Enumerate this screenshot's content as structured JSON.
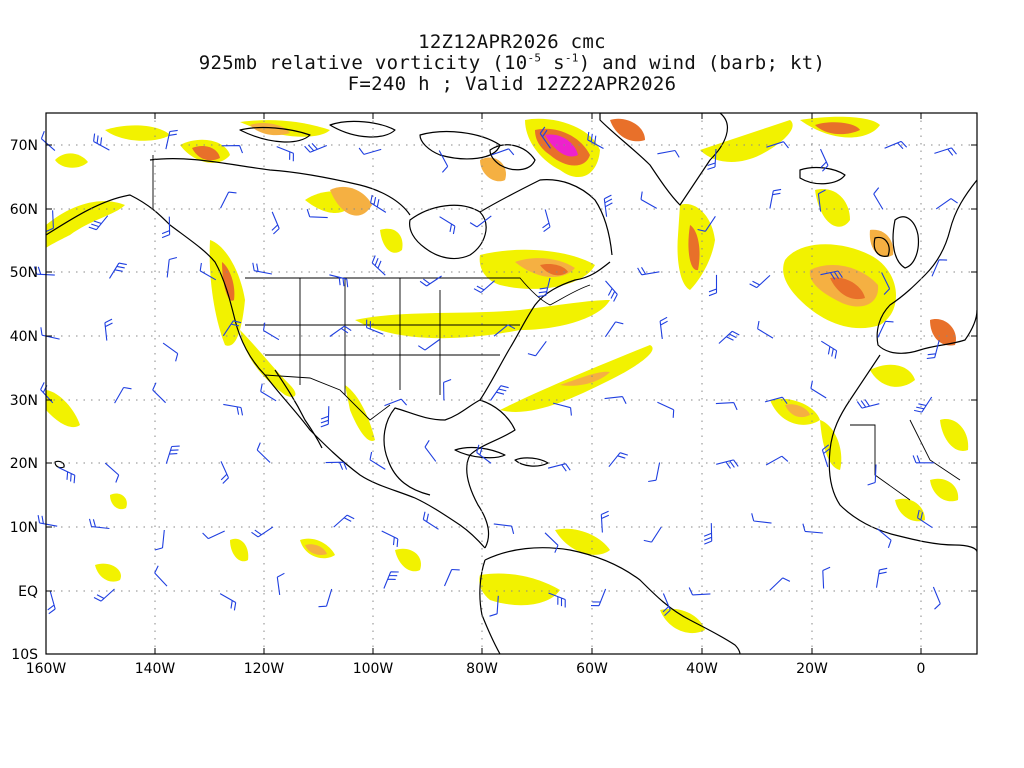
{
  "title": {
    "line1": "12Z12APR2026 cmc",
    "line2_pre": "925mb relative vorticity (10",
    "line2_exp1": "-5",
    "line2_mid": " s",
    "line2_exp2": "-1",
    "line2_post": ") and wind (barb; kt)",
    "line3": "F=240 h ; Valid 12Z22APR2026"
  },
  "map": {
    "lon_labels": [
      "160W",
      "140W",
      "120W",
      "100W",
      "80W",
      "60W",
      "40W",
      "20W",
      "0"
    ],
    "lat_labels": [
      "70N",
      "60N",
      "50N",
      "40N",
      "30N",
      "20N",
      "10N",
      "EQ",
      "10S"
    ],
    "colors": {
      "yellow": "#f2f200",
      "orange": "#f5b042",
      "dark_orange": "#e8702a",
      "red": "#e03c28",
      "magenta": "#ee22cc",
      "barb": "#1f3fe0",
      "coast": "#000000",
      "grid": "#888888"
    }
  }
}
